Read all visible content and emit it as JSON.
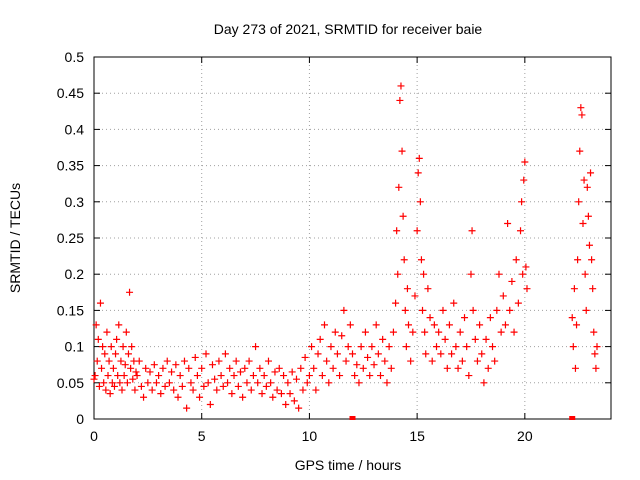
{
  "chart_data": {
    "type": "scatter",
    "title": "Day 273 of 2021, SRMTID for receiver baie",
    "xlabel": "GPS time / hours",
    "ylabel": "SRMTID / TECUs",
    "xlim": [
      0,
      24
    ],
    "ylim": [
      0,
      0.5
    ],
    "xticks": [
      0,
      5,
      10,
      15,
      20
    ],
    "yticks": [
      0,
      0.05,
      0.1,
      0.15,
      0.2,
      0.25,
      0.3,
      0.35,
      0.4,
      0.45,
      0.5
    ],
    "ytick_labels": [
      "0",
      "0.05",
      "0.1",
      "0.15",
      "0.2",
      "0.25",
      "0.3",
      "0.35",
      "0.4",
      "0.45",
      "0.5"
    ],
    "grid": true,
    "marker": "+",
    "color": "#ff0000",
    "zero_markers_x": [
      12.0,
      22.2
    ],
    "series": [
      {
        "name": "SRMTID",
        "points": [
          [
            0.0,
            0.055
          ],
          [
            0.05,
            0.06
          ],
          [
            0.1,
            0.13
          ],
          [
            0.15,
            0.08
          ],
          [
            0.2,
            0.11
          ],
          [
            0.25,
            0.045
          ],
          [
            0.3,
            0.16
          ],
          [
            0.35,
            0.07
          ],
          [
            0.4,
            0.1
          ],
          [
            0.45,
            0.05
          ],
          [
            0.5,
            0.09
          ],
          [
            0.55,
            0.04
          ],
          [
            0.6,
            0.12
          ],
          [
            0.65,
            0.06
          ],
          [
            0.7,
            0.08
          ],
          [
            0.75,
            0.035
          ],
          [
            0.8,
            0.1
          ],
          [
            0.85,
            0.05
          ],
          [
            0.9,
            0.07
          ],
          [
            0.95,
            0.045
          ],
          [
            1.0,
            0.09
          ],
          [
            1.05,
            0.11
          ],
          [
            1.1,
            0.06
          ],
          [
            1.15,
            0.13
          ],
          [
            1.2,
            0.05
          ],
          [
            1.25,
            0.08
          ],
          [
            1.3,
            0.04
          ],
          [
            1.35,
            0.1
          ],
          [
            1.4,
            0.06
          ],
          [
            1.45,
            0.075
          ],
          [
            1.5,
            0.12
          ],
          [
            1.55,
            0.05
          ],
          [
            1.6,
            0.09
          ],
          [
            1.65,
            0.175
          ],
          [
            1.7,
            0.07
          ],
          [
            1.75,
            0.1
          ],
          [
            1.8,
            0.055
          ],
          [
            1.85,
            0.08
          ],
          [
            1.9,
            0.04
          ],
          [
            1.95,
            0.065
          ],
          [
            2.0,
            0.06
          ],
          [
            2.1,
            0.08
          ],
          [
            2.2,
            0.045
          ],
          [
            2.3,
            0.03
          ],
          [
            2.4,
            0.07
          ],
          [
            2.5,
            0.05
          ],
          [
            2.6,
            0.065
          ],
          [
            2.7,
            0.04
          ],
          [
            2.8,
            0.075
          ],
          [
            2.9,
            0.05
          ],
          [
            3.0,
            0.06
          ],
          [
            3.1,
            0.035
          ],
          [
            3.2,
            0.07
          ],
          [
            3.3,
            0.045
          ],
          [
            3.4,
            0.08
          ],
          [
            3.5,
            0.05
          ],
          [
            3.6,
            0.065
          ],
          [
            3.7,
            0.04
          ],
          [
            3.8,
            0.075
          ],
          [
            3.9,
            0.03
          ],
          [
            4.0,
            0.06
          ],
          [
            4.1,
            0.045
          ],
          [
            4.2,
            0.08
          ],
          [
            4.3,
            0.015
          ],
          [
            4.4,
            0.07
          ],
          [
            4.5,
            0.05
          ],
          [
            4.6,
            0.04
          ],
          [
            4.7,
            0.085
          ],
          [
            4.8,
            0.06
          ],
          [
            4.9,
            0.03
          ],
          [
            5.0,
            0.07
          ],
          [
            5.1,
            0.045
          ],
          [
            5.2,
            0.09
          ],
          [
            5.3,
            0.05
          ],
          [
            5.4,
            0.02
          ],
          [
            5.5,
            0.075
          ],
          [
            5.6,
            0.055
          ],
          [
            5.7,
            0.04
          ],
          [
            5.8,
            0.08
          ],
          [
            5.9,
            0.06
          ],
          [
            6.0,
            0.045
          ],
          [
            6.1,
            0.09
          ],
          [
            6.2,
            0.05
          ],
          [
            6.3,
            0.07
          ],
          [
            6.4,
            0.035
          ],
          [
            6.5,
            0.06
          ],
          [
            6.6,
            0.08
          ],
          [
            6.7,
            0.045
          ],
          [
            6.8,
            0.065
          ],
          [
            6.9,
            0.03
          ],
          [
            7.0,
            0.07
          ],
          [
            7.1,
            0.05
          ],
          [
            7.2,
            0.08
          ],
          [
            7.3,
            0.04
          ],
          [
            7.4,
            0.06
          ],
          [
            7.5,
            0.1
          ],
          [
            7.6,
            0.05
          ],
          [
            7.7,
            0.07
          ],
          [
            7.8,
            0.035
          ],
          [
            7.9,
            0.06
          ],
          [
            8.0,
            0.045
          ],
          [
            8.1,
            0.08
          ],
          [
            8.2,
            0.05
          ],
          [
            8.3,
            0.03
          ],
          [
            8.4,
            0.065
          ],
          [
            8.5,
            0.04
          ],
          [
            8.6,
            0.07
          ],
          [
            8.7,
            0.035
          ],
          [
            8.8,
            0.06
          ],
          [
            8.9,
            0.02
          ],
          [
            9.0,
            0.05
          ],
          [
            9.1,
            0.035
          ],
          [
            9.2,
            0.065
          ],
          [
            9.3,
            0.025
          ],
          [
            9.4,
            0.055
          ],
          [
            9.5,
            0.015
          ],
          [
            9.6,
            0.07
          ],
          [
            9.7,
            0.04
          ],
          [
            9.8,
            0.085
          ],
          [
            9.9,
            0.05
          ],
          [
            10.0,
            0.06
          ],
          [
            10.1,
            0.1
          ],
          [
            10.2,
            0.07
          ],
          [
            10.3,
            0.04
          ],
          [
            10.4,
            0.09
          ],
          [
            10.5,
            0.11
          ],
          [
            10.6,
            0.06
          ],
          [
            10.7,
            0.13
          ],
          [
            10.8,
            0.08
          ],
          [
            10.9,
            0.05
          ],
          [
            11.0,
            0.1
          ],
          [
            11.1,
            0.07
          ],
          [
            11.2,
            0.12
          ],
          [
            11.3,
            0.09
          ],
          [
            11.4,
            0.06
          ],
          [
            11.5,
            0.115
          ],
          [
            11.6,
            0.15
          ],
          [
            11.7,
            0.08
          ],
          [
            11.8,
            0.1
          ],
          [
            11.9,
            0.13
          ],
          [
            12.0,
            0.09
          ],
          [
            12.1,
            0.06
          ],
          [
            12.2,
            0.075
          ],
          [
            12.3,
            0.05
          ],
          [
            12.4,
            0.1
          ],
          [
            12.5,
            0.07
          ],
          [
            12.6,
            0.12
          ],
          [
            12.7,
            0.085
          ],
          [
            12.8,
            0.06
          ],
          [
            12.9,
            0.1
          ],
          [
            13.0,
            0.075
          ],
          [
            13.1,
            0.13
          ],
          [
            13.2,
            0.09
          ],
          [
            13.3,
            0.06
          ],
          [
            13.4,
            0.11
          ],
          [
            13.5,
            0.08
          ],
          [
            13.6,
            0.05
          ],
          [
            13.7,
            0.1
          ],
          [
            13.8,
            0.07
          ],
          [
            13.9,
            0.12
          ],
          [
            14.0,
            0.16
          ],
          [
            14.05,
            0.26
          ],
          [
            14.1,
            0.2
          ],
          [
            14.15,
            0.32
          ],
          [
            14.2,
            0.44
          ],
          [
            14.25,
            0.46
          ],
          [
            14.3,
            0.37
          ],
          [
            14.35,
            0.28
          ],
          [
            14.4,
            0.22
          ],
          [
            14.45,
            0.15
          ],
          [
            14.5,
            0.1
          ],
          [
            14.55,
            0.18
          ],
          [
            14.6,
            0.13
          ],
          [
            14.7,
            0.08
          ],
          [
            14.8,
            0.12
          ],
          [
            14.9,
            0.17
          ],
          [
            15.0,
            0.26
          ],
          [
            15.05,
            0.34
          ],
          [
            15.1,
            0.36
          ],
          [
            15.15,
            0.3
          ],
          [
            15.2,
            0.22
          ],
          [
            15.25,
            0.15
          ],
          [
            15.3,
            0.2
          ],
          [
            15.35,
            0.12
          ],
          [
            15.4,
            0.09
          ],
          [
            15.5,
            0.18
          ],
          [
            15.6,
            0.14
          ],
          [
            15.7,
            0.08
          ],
          [
            15.8,
            0.13
          ],
          [
            15.9,
            0.1
          ],
          [
            16.0,
            0.12
          ],
          [
            16.1,
            0.09
          ],
          [
            16.2,
            0.15
          ],
          [
            16.3,
            0.11
          ],
          [
            16.4,
            0.07
          ],
          [
            16.5,
            0.13
          ],
          [
            16.6,
            0.09
          ],
          [
            16.7,
            0.16
          ],
          [
            16.8,
            0.1
          ],
          [
            16.9,
            0.07
          ],
          [
            17.0,
            0.12
          ],
          [
            17.1,
            0.08
          ],
          [
            17.2,
            0.14
          ],
          [
            17.3,
            0.1
          ],
          [
            17.4,
            0.06
          ],
          [
            17.5,
            0.2
          ],
          [
            17.55,
            0.26
          ],
          [
            17.6,
            0.15
          ],
          [
            17.7,
            0.11
          ],
          [
            17.8,
            0.08
          ],
          [
            17.9,
            0.13
          ],
          [
            18.0,
            0.09
          ],
          [
            18.1,
            0.05
          ],
          [
            18.2,
            0.11
          ],
          [
            18.3,
            0.07
          ],
          [
            18.4,
            0.14
          ],
          [
            18.5,
            0.1
          ],
          [
            18.6,
            0.08
          ],
          [
            18.7,
            0.15
          ],
          [
            18.8,
            0.2
          ],
          [
            18.9,
            0.12
          ],
          [
            19.0,
            0.17
          ],
          [
            19.1,
            0.13
          ],
          [
            19.2,
            0.27
          ],
          [
            19.3,
            0.15
          ],
          [
            19.4,
            0.19
          ],
          [
            19.5,
            0.12
          ],
          [
            19.6,
            0.22
          ],
          [
            19.7,
            0.16
          ],
          [
            19.8,
            0.26
          ],
          [
            19.85,
            0.3
          ],
          [
            19.9,
            0.2
          ],
          [
            19.95,
            0.33
          ],
          [
            20.0,
            0.355
          ],
          [
            20.05,
            0.21
          ],
          [
            20.1,
            0.18
          ],
          [
            22.2,
            0.14
          ],
          [
            22.25,
            0.1
          ],
          [
            22.3,
            0.18
          ],
          [
            22.35,
            0.07
          ],
          [
            22.4,
            0.13
          ],
          [
            22.45,
            0.22
          ],
          [
            22.5,
            0.3
          ],
          [
            22.55,
            0.37
          ],
          [
            22.6,
            0.43
          ],
          [
            22.65,
            0.42
          ],
          [
            22.7,
            0.27
          ],
          [
            22.75,
            0.33
          ],
          [
            22.8,
            0.2
          ],
          [
            22.85,
            0.15
          ],
          [
            22.9,
            0.32
          ],
          [
            22.95,
            0.28
          ],
          [
            23.0,
            0.24
          ],
          [
            23.05,
            0.34
          ],
          [
            23.1,
            0.22
          ],
          [
            23.15,
            0.18
          ],
          [
            23.2,
            0.12
          ],
          [
            23.25,
            0.09
          ],
          [
            23.3,
            0.07
          ],
          [
            23.35,
            0.1
          ]
        ]
      }
    ]
  }
}
